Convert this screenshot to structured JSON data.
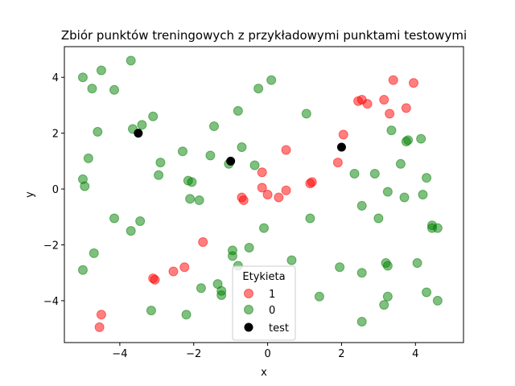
{
  "chart_data": {
    "type": "scatter",
    "title": "Zbiór punktów treningowych z przykładowymi punktami testowymi",
    "xlabel": "x",
    "ylabel": "y",
    "xlim": [
      -5.5,
      5.3
    ],
    "ylim": [
      -5.5,
      5.1
    ],
    "xticks": [
      -4,
      -2,
      0,
      2,
      4
    ],
    "yticks": [
      -4,
      -2,
      0,
      2,
      4
    ],
    "xtick_labels": [
      "−4",
      "−2",
      "0",
      "2",
      "4"
    ],
    "ytick_labels": [
      "−4",
      "−2",
      "0",
      "2",
      "4"
    ],
    "grid": false,
    "legend": {
      "title": "Etykieta",
      "placement": "lower-center",
      "entries": [
        "1",
        "0",
        "test"
      ]
    },
    "colors": {
      "1": "#ff0000",
      "0": "#008000",
      "test": "#000000"
    },
    "series": [
      {
        "name": "1",
        "points": [
          [
            3.4,
            3.9
          ],
          [
            3.95,
            3.8
          ],
          [
            2.55,
            3.2
          ],
          [
            2.45,
            3.15
          ],
          [
            2.7,
            3.05
          ],
          [
            3.15,
            3.2
          ],
          [
            3.3,
            2.7
          ],
          [
            3.75,
            2.9
          ],
          [
            2.05,
            1.95
          ],
          [
            1.9,
            0.95
          ],
          [
            1.2,
            0.25
          ],
          [
            1.15,
            0.2
          ],
          [
            0.5,
            1.4
          ],
          [
            -0.15,
            0.6
          ],
          [
            -0.15,
            0.05
          ],
          [
            0.0,
            -0.2
          ],
          [
            0.3,
            -0.3
          ],
          [
            0.5,
            -0.05
          ],
          [
            -0.7,
            -0.3
          ],
          [
            -0.65,
            -0.4
          ],
          [
            -1.75,
            -1.9
          ],
          [
            -2.55,
            -2.95
          ],
          [
            -2.25,
            -2.8
          ],
          [
            -3.1,
            -3.2
          ],
          [
            -3.05,
            -3.25
          ],
          [
            -4.5,
            -4.5
          ],
          [
            -4.55,
            -4.95
          ]
        ]
      },
      {
        "name": "0",
        "points": [
          [
            -3.7,
            4.6
          ],
          [
            -4.5,
            4.25
          ],
          [
            -5.0,
            4.0
          ],
          [
            -4.75,
            3.6
          ],
          [
            -4.15,
            3.55
          ],
          [
            -3.65,
            2.15
          ],
          [
            -3.4,
            2.3
          ],
          [
            -3.1,
            2.6
          ],
          [
            -4.6,
            2.05
          ],
          [
            -4.85,
            1.1
          ],
          [
            -5.0,
            0.35
          ],
          [
            -4.95,
            0.1
          ],
          [
            -2.9,
            0.95
          ],
          [
            -2.95,
            0.5
          ],
          [
            -2.3,
            1.35
          ],
          [
            -1.55,
            1.2
          ],
          [
            -1.45,
            2.25
          ],
          [
            -0.8,
            2.8
          ],
          [
            -0.25,
            3.6
          ],
          [
            0.1,
            3.9
          ],
          [
            -0.7,
            1.5
          ],
          [
            -1.05,
            0.9
          ],
          [
            -0.35,
            0.85
          ],
          [
            -2.15,
            0.3
          ],
          [
            -2.05,
            0.25
          ],
          [
            -2.1,
            -0.35
          ],
          [
            -1.85,
            -0.4
          ],
          [
            -4.15,
            -1.05
          ],
          [
            -3.45,
            -1.15
          ],
          [
            -3.7,
            -1.5
          ],
          [
            -4.7,
            -2.3
          ],
          [
            -5.0,
            -2.9
          ],
          [
            -0.95,
            -2.2
          ],
          [
            -0.95,
            -2.4
          ],
          [
            -0.5,
            -2.1
          ],
          [
            -0.1,
            -1.4
          ],
          [
            -0.8,
            -2.75
          ],
          [
            -1.35,
            -3.4
          ],
          [
            -1.25,
            -3.65
          ],
          [
            -1.25,
            -3.8
          ],
          [
            -1.8,
            -3.55
          ],
          [
            -3.15,
            -4.35
          ],
          [
            -2.2,
            -4.5
          ],
          [
            0.65,
            -2.55
          ],
          [
            1.15,
            -1.05
          ],
          [
            1.4,
            -3.85
          ],
          [
            1.05,
            2.7
          ],
          [
            2.35,
            0.55
          ],
          [
            2.9,
            0.55
          ],
          [
            3.35,
            2.1
          ],
          [
            3.75,
            1.7
          ],
          [
            3.8,
            1.75
          ],
          [
            4.15,
            1.8
          ],
          [
            3.6,
            0.9
          ],
          [
            4.3,
            0.4
          ],
          [
            3.25,
            -0.1
          ],
          [
            3.7,
            -0.3
          ],
          [
            4.2,
            -0.2
          ],
          [
            2.55,
            -0.6
          ],
          [
            3.0,
            -1.05
          ],
          [
            4.45,
            -1.3
          ],
          [
            4.45,
            -1.4
          ],
          [
            4.6,
            -1.4
          ],
          [
            4.05,
            -2.65
          ],
          [
            3.2,
            -2.65
          ],
          [
            3.25,
            -2.75
          ],
          [
            1.95,
            -2.8
          ],
          [
            2.55,
            -3.0
          ],
          [
            3.25,
            -3.85
          ],
          [
            3.15,
            -4.15
          ],
          [
            4.3,
            -3.7
          ],
          [
            4.6,
            -4.0
          ],
          [
            2.55,
            -4.75
          ]
        ]
      },
      {
        "name": "test",
        "points": [
          [
            -3.5,
            2.0
          ],
          [
            -1.0,
            1.0
          ],
          [
            2.0,
            1.5
          ]
        ]
      }
    ]
  }
}
